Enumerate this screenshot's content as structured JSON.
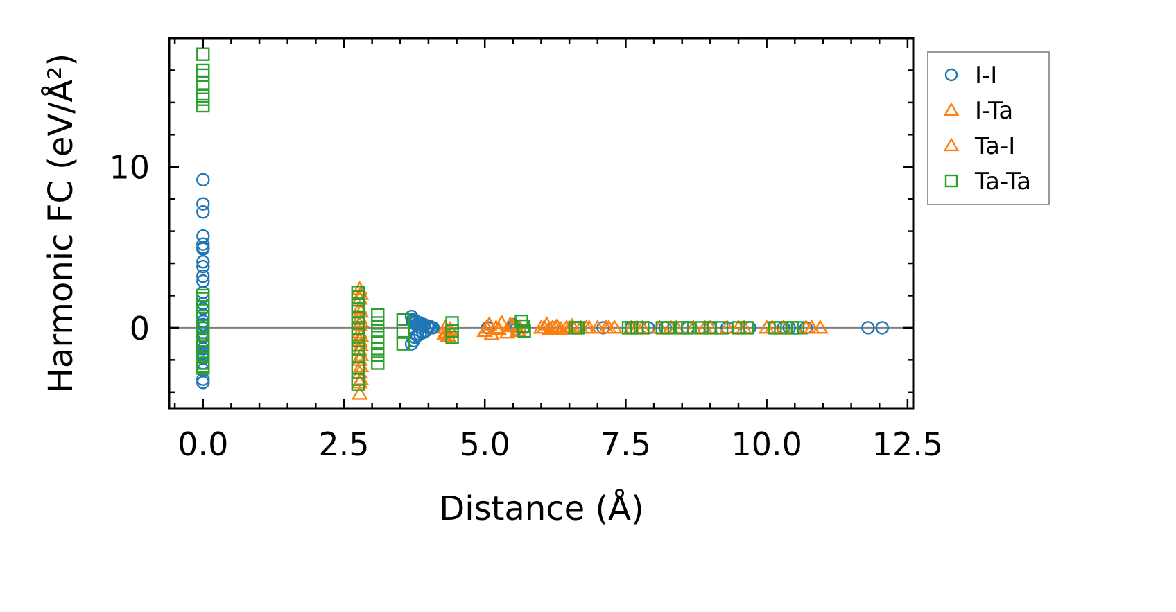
{
  "chart_data": {
    "type": "scatter",
    "xlabel": "Distance (Å)",
    "ylabel": "Harmonic FC (eV/Å²)",
    "xlim": [
      -0.6,
      12.6
    ],
    "ylim": [
      -5,
      18
    ],
    "xticks": [
      0.0,
      2.5,
      5.0,
      7.5,
      10.0,
      12.5
    ],
    "xtick_labels": [
      "0.0",
      "2.5",
      "5.0",
      "7.5",
      "10.0",
      "12.5"
    ],
    "yticks": [
      0,
      10
    ],
    "ytick_labels": [
      "0",
      "10"
    ],
    "zero_line": true,
    "legend_position": "outside-right",
    "series": [
      {
        "name": "I-I",
        "marker": "circle",
        "color": "#1f77b4",
        "x": [
          0,
          0,
          0,
          0,
          0,
          0,
          0,
          0,
          0,
          0,
          0,
          0,
          0,
          0,
          0,
          0,
          0,
          0,
          0,
          0,
          0,
          0,
          0,
          0,
          0,
          0,
          0,
          0,
          0,
          3.7,
          3.7,
          3.72,
          3.74,
          3.75,
          3.76,
          3.78,
          3.8,
          3.82,
          3.85,
          3.88,
          3.9,
          3.92,
          3.95,
          3.98,
          4.0,
          4.02,
          4.05,
          3.72,
          3.78,
          3.85,
          3.92,
          4.0,
          4.08,
          5.05,
          5.5,
          5.52,
          5.55,
          6.2,
          6.6,
          6.65,
          7.1,
          7.6,
          7.9,
          8.2,
          8.6,
          9.0,
          9.3,
          9.7,
          10.3,
          10.4,
          10.7,
          11.8,
          12.05
        ],
        "y": [
          9.2,
          7.7,
          7.2,
          5.7,
          5.2,
          5.0,
          4.9,
          4.1,
          3.8,
          3.2,
          2.9,
          2.2,
          1.5,
          1.2,
          0.8,
          0.4,
          0.2,
          0,
          -0.3,
          -0.6,
          -1.0,
          -1.3,
          -1.6,
          -1.9,
          -2.2,
          -2.6,
          -3.2,
          -3.4,
          -1.8,
          0.7,
          -1.0,
          0.4,
          -0.8,
          0.3,
          -0.6,
          0.2,
          -0.5,
          0.3,
          -0.4,
          0.2,
          -0.3,
          0.1,
          -0.2,
          0.1,
          0,
          0.1,
          0,
          0.5,
          0.4,
          0.3,
          0.2,
          0.1,
          0,
          0,
          0.2,
          0.1,
          -0.1,
          0,
          0,
          0,
          0,
          0,
          0,
          0,
          0,
          0,
          0,
          0,
          0,
          0,
          0,
          0,
          0
        ]
      },
      {
        "name": "I-Ta",
        "marker": "triangle",
        "color": "#ff7f0e",
        "x": [
          2.78,
          2.78,
          2.78,
          2.78,
          2.78,
          2.78,
          2.78,
          2.78,
          2.78,
          2.78,
          2.78,
          2.78,
          4.3,
          4.32,
          4.35,
          4.4,
          5.0,
          5.08,
          5.12,
          5.2,
          5.3,
          5.4,
          5.5,
          5.58,
          5.62,
          6.05,
          6.1,
          6.15,
          6.2,
          6.28,
          6.35,
          6.45,
          6.55,
          6.7,
          6.85,
          7.0,
          7.15,
          7.3,
          7.6,
          7.8,
          8.1,
          8.4,
          8.7,
          9.0,
          9.3,
          9.6,
          10.0,
          10.3,
          10.7,
          10.95
        ],
        "y": [
          2.4,
          1.8,
          1.2,
          0.6,
          0.2,
          -0.3,
          -0.8,
          -1.4,
          -2.0,
          -2.8,
          -3.4,
          -4.1,
          0,
          -0.3,
          -0.5,
          -0.2,
          -0.2,
          0.2,
          -0.4,
          0,
          0.3,
          -0.3,
          0.1,
          -0.2,
          0,
          0,
          0.2,
          -0.1,
          0,
          0.1,
          -0.1,
          0,
          0.1,
          0,
          0,
          0,
          0,
          0,
          0,
          0,
          0,
          0,
          0,
          0,
          0,
          0,
          0,
          0,
          0,
          0
        ]
      },
      {
        "name": "Ta-I",
        "marker": "triangle",
        "color": "#ff7f0e",
        "x": [
          2.8,
          2.8,
          2.8,
          2.8,
          2.8,
          2.8,
          2.8,
          2.8,
          4.28,
          4.38,
          5.03,
          5.25,
          5.45,
          5.6,
          6.0,
          6.25,
          6.5,
          6.8,
          7.2,
          7.7,
          8.3,
          8.9,
          9.5,
          10.1,
          10.8
        ],
        "y": [
          2.1,
          1.0,
          0.4,
          -0.5,
          -1.1,
          -1.7,
          -2.4,
          -3.2,
          -0.4,
          -0.1,
          0,
          -0.1,
          0.2,
          -0.2,
          0,
          0,
          0,
          0,
          0,
          0,
          0,
          0,
          0,
          0,
          0
        ]
      },
      {
        "name": "Ta-Ta",
        "marker": "square",
        "color": "#2ca02c",
        "x": [
          0,
          0,
          0,
          0,
          0,
          0,
          0,
          0,
          0,
          0,
          0,
          0,
          0,
          0,
          0,
          0,
          0,
          0,
          0,
          0,
          2.75,
          2.75,
          2.75,
          2.75,
          2.75,
          2.75,
          2.75,
          2.75,
          2.75,
          2.75,
          2.75,
          2.75,
          2.75,
          2.75,
          3.1,
          3.1,
          3.1,
          3.1,
          3.1,
          3.1,
          3.1,
          3.1,
          3.55,
          3.55,
          3.55,
          4.42,
          4.42,
          4.42,
          5.65,
          5.68,
          5.7,
          6.6,
          6.65,
          7.55,
          7.6,
          7.7,
          7.8,
          8.15,
          8.25,
          8.5,
          8.6,
          8.85,
          9.0,
          9.2,
          9.5,
          9.65,
          10.15,
          10.25,
          10.45,
          10.55
        ],
        "y": [
          17,
          16,
          15.7,
          15.2,
          14.4,
          14.2,
          13.8,
          2.0,
          1.8,
          1.3,
          0.7,
          0.1,
          -0.3,
          -0.8,
          -1.2,
          -1.5,
          -1.8,
          -2.2,
          -2.4,
          -2.5,
          2.2,
          1.9,
          1.4,
          1.0,
          0.6,
          0.3,
          0,
          -0.4,
          -0.8,
          -1.3,
          -1.8,
          -2.5,
          -3.2,
          -3.5,
          0.8,
          0.3,
          -0.2,
          -0.6,
          -0.9,
          -1.3,
          -1.7,
          -2.2,
          0.5,
          -0.2,
          -1.0,
          0.3,
          -0.2,
          -0.6,
          0.4,
          0.1,
          -0.2,
          0,
          0,
          0,
          0,
          0,
          0,
          0,
          0,
          0,
          0,
          0,
          0,
          0,
          0,
          0,
          0,
          0,
          0,
          0
        ]
      }
    ]
  }
}
